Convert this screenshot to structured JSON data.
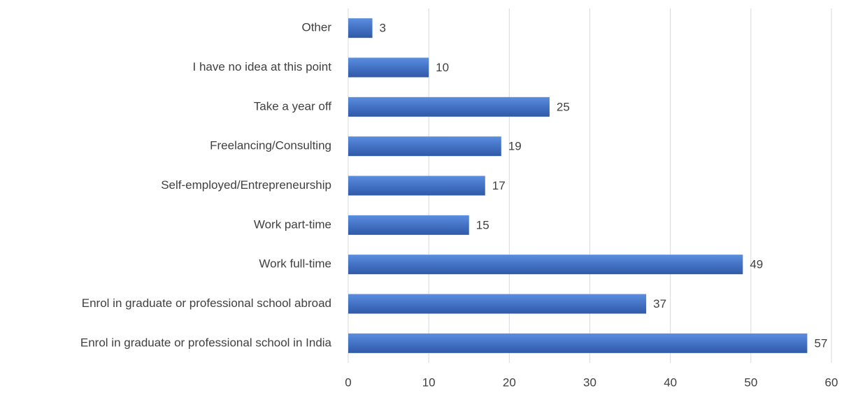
{
  "chart_data": {
    "type": "barh",
    "categories": [
      "Other",
      "I have no idea at this point",
      "Take a year off",
      "Freelancing/Consulting",
      "Self-employed/Entrepreneurship",
      "Work part-time",
      "Work full-time",
      "Enrol in graduate or professional school abroad",
      "Enrol in graduate or professional school in India"
    ],
    "values": [
      3,
      10,
      25,
      19,
      17,
      15,
      49,
      37,
      57
    ],
    "color": "#4472c4",
    "xlim": [
      0,
      60
    ],
    "xticks": [
      0,
      10,
      20,
      30,
      40,
      50,
      60
    ],
    "grid": true
  }
}
